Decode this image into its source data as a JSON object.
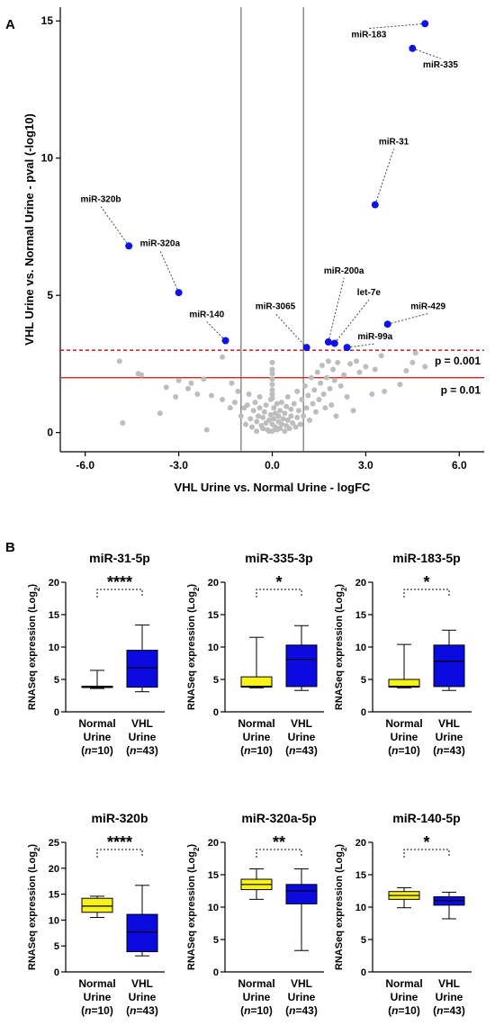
{
  "panel_labels": [
    "A",
    "B"
  ],
  "chart_data": [
    {
      "type": "scatter",
      "xlabel": "VHL Urine vs. Normal Urine - logFC",
      "ylabel": "VHL Urine vs. Normal Urine - pval (-log10)",
      "xlim": [
        -6.8,
        6.8
      ],
      "ylim": [
        -0.7,
        15.5
      ],
      "xticks": [
        "-6.0",
        "-3.0",
        "0.0",
        "3.0",
        "6.0"
      ],
      "xtick_values": [
        -6,
        -3,
        0,
        3,
        6
      ],
      "yticks": [
        "0",
        "5",
        "10",
        "15"
      ],
      "ytick_values": [
        0,
        5,
        10,
        15
      ],
      "vertical_lines": [
        -1,
        1
      ],
      "threshold_lines": [
        {
          "y": 3.0,
          "label": "p = 0.001",
          "style": "dashed",
          "color": "#b0121b"
        },
        {
          "y": 2.0,
          "label": "p = 0.01",
          "style": "solid",
          "color": "#e02020"
        }
      ],
      "highlight_color": "#1010e8",
      "background_color": "#bdbdbd",
      "highlighted": [
        {
          "name": "miR-183",
          "x": 4.9,
          "y": 14.9,
          "lx": 3.1,
          "ly": 14.4
        },
        {
          "name": "miR-335",
          "x": 4.5,
          "y": 14.0,
          "lx": 5.4,
          "ly": 13.3
        },
        {
          "name": "miR-31",
          "x": 3.3,
          "y": 8.3,
          "lx": 3.9,
          "ly": 10.5
        },
        {
          "name": "miR-320b",
          "x": -4.6,
          "y": 6.8,
          "lx": -5.5,
          "ly": 8.4
        },
        {
          "name": "miR-320a",
          "x": -3.0,
          "y": 5.1,
          "lx": -3.6,
          "ly": 6.8
        },
        {
          "name": "miR-200a",
          "x": 1.8,
          "y": 3.3,
          "lx": 2.3,
          "ly": 5.8
        },
        {
          "name": "let-7e",
          "x": 2.0,
          "y": 3.25,
          "lx": 3.1,
          "ly": 5.0
        },
        {
          "name": "miR-429",
          "x": 3.7,
          "y": 3.95,
          "lx": 5.0,
          "ly": 4.5
        },
        {
          "name": "miR-140",
          "x": -1.5,
          "y": 3.35,
          "lx": -2.1,
          "ly": 4.2
        },
        {
          "name": "miR-3065",
          "x": 1.1,
          "y": 3.1,
          "lx": 0.1,
          "ly": 4.5
        },
        {
          "name": "miR-99a",
          "x": 2.4,
          "y": 3.1,
          "lx": 3.3,
          "ly": 3.4
        }
      ],
      "background_points": [
        [
          -4.9,
          2.6
        ],
        [
          -4.8,
          0.35
        ],
        [
          -4.3,
          2.15
        ],
        [
          -4.2,
          2.1
        ],
        [
          -3.6,
          0.7
        ],
        [
          -3.4,
          1.65
        ],
        [
          -3.1,
          1.3
        ],
        [
          -3.0,
          1.9
        ],
        [
          -2.7,
          1.6
        ],
        [
          -2.6,
          1.8
        ],
        [
          -2.4,
          1.4
        ],
        [
          -2.2,
          1.95
        ],
        [
          -2.1,
          0.1
        ],
        [
          -1.95,
          1.35
        ],
        [
          -1.6,
          1.2
        ],
        [
          -1.6,
          2.75
        ],
        [
          -1.35,
          0.9
        ],
        [
          -1.3,
          1.8
        ],
        [
          -1.2,
          1.1
        ],
        [
          -1.1,
          1.5
        ],
        [
          -1.0,
          0.6
        ],
        [
          -0.9,
          0.9
        ],
        [
          -0.85,
          0.3
        ],
        [
          -0.8,
          1.0
        ],
        [
          -0.75,
          1.4
        ],
        [
          -0.7,
          0.5
        ],
        [
          -0.65,
          0.2
        ],
        [
          -0.6,
          0.8
        ],
        [
          -0.55,
          1.1
        ],
        [
          -0.5,
          0.4
        ],
        [
          -0.5,
          0.05
        ],
        [
          -0.45,
          0.6
        ],
        [
          -0.4,
          0.9
        ],
        [
          -0.4,
          1.3
        ],
        [
          -0.35,
          0.25
        ],
        [
          -0.3,
          0.55
        ],
        [
          -0.3,
          0.15
        ],
        [
          -0.25,
          0.75
        ],
        [
          -0.2,
          0.35
        ],
        [
          -0.2,
          1.0
        ],
        [
          -0.15,
          0.1
        ],
        [
          -0.1,
          0.45
        ],
        [
          -0.1,
          0.05
        ],
        [
          -0.05,
          0.65
        ],
        [
          -0.05,
          1.2
        ],
        [
          0.0,
          2.55
        ],
        [
          0.0,
          2.3
        ],
        [
          0.0,
          2.15
        ],
        [
          0.0,
          1.95
        ],
        [
          0.0,
          1.75
        ],
        [
          0.0,
          1.55
        ],
        [
          0.0,
          1.4
        ],
        [
          0.0,
          1.25
        ],
        [
          0.0,
          0.3
        ],
        [
          0.0,
          0.05
        ],
        [
          0.05,
          0.5
        ],
        [
          0.05,
          0.9
        ],
        [
          0.1,
          0.2
        ],
        [
          0.1,
          0.7
        ],
        [
          0.15,
          0.1
        ],
        [
          0.15,
          1.05
        ],
        [
          0.2,
          0.4
        ],
        [
          0.2,
          0.6
        ],
        [
          0.25,
          0.15
        ],
        [
          0.25,
          0.8
        ],
        [
          0.3,
          0.3
        ],
        [
          0.3,
          1.1
        ],
        [
          0.35,
          0.5
        ],
        [
          0.4,
          0.05
        ],
        [
          0.4,
          0.7
        ],
        [
          0.45,
          0.25
        ],
        [
          0.45,
          0.95
        ],
        [
          0.5,
          0.45
        ],
        [
          0.5,
          1.3
        ],
        [
          0.55,
          0.15
        ],
        [
          0.6,
          0.6
        ],
        [
          0.6,
          0.85
        ],
        [
          0.65,
          0.35
        ],
        [
          0.7,
          1.05
        ],
        [
          0.75,
          0.2
        ],
        [
          0.8,
          0.55
        ],
        [
          0.8,
          1.5
        ],
        [
          0.85,
          0.8
        ],
        [
          0.9,
          0.3
        ],
        [
          0.95,
          1.2
        ],
        [
          1.0,
          0.6
        ],
        [
          1.05,
          1.7
        ],
        [
          1.1,
          0.9
        ],
        [
          1.15,
          1.35
        ],
        [
          1.2,
          0.45
        ],
        [
          1.25,
          2.0
        ],
        [
          1.3,
          1.05
        ],
        [
          1.35,
          1.55
        ],
        [
          1.4,
          0.75
        ],
        [
          1.45,
          2.2
        ],
        [
          1.5,
          1.2
        ],
        [
          1.55,
          1.8
        ],
        [
          1.6,
          2.45
        ],
        [
          1.65,
          1.4
        ],
        [
          1.7,
          0.9
        ],
        [
          1.75,
          2.0
        ],
        [
          1.8,
          2.6
        ],
        [
          1.85,
          1.6
        ],
        [
          1.9,
          1.0
        ],
        [
          1.95,
          2.3
        ],
        [
          2.0,
          1.9
        ],
        [
          2.05,
          0.6
        ],
        [
          2.1,
          2.55
        ],
        [
          2.2,
          1.7
        ],
        [
          2.3,
          2.1
        ],
        [
          2.4,
          1.3
        ],
        [
          2.5,
          2.5
        ],
        [
          2.6,
          0.8
        ],
        [
          2.7,
          2.6
        ],
        [
          2.8,
          2.2
        ],
        [
          3.0,
          2.4
        ],
        [
          3.2,
          1.4
        ],
        [
          3.3,
          2.3
        ],
        [
          3.5,
          2.8
        ],
        [
          3.6,
          1.5
        ],
        [
          4.1,
          1.75
        ],
        [
          4.3,
          2.25
        ],
        [
          4.5,
          2.55
        ],
        [
          4.6,
          2.9
        ],
        [
          4.9,
          2.4
        ]
      ]
    },
    {
      "type": "box",
      "title": "miR-31-5p",
      "ylabel": "RNASeq expression (Log2)",
      "ylim": [
        0,
        20
      ],
      "yticks": [
        0,
        5,
        10,
        15,
        20
      ],
      "categories": [
        "Normal Urine (n=10)",
        "VHL Urine (n=43)"
      ],
      "cat_line1": [
        "Normal",
        "VHL"
      ],
      "cat_line2": [
        "Urine",
        "Urine"
      ],
      "cat_n": [
        "10",
        "43"
      ],
      "colors": [
        "#ffffff",
        "#0b0bdf"
      ],
      "boxes": [
        {
          "min": 3.6,
          "q1": 3.75,
          "median": 3.85,
          "q3": 3.95,
          "max": 6.4
        },
        {
          "min": 3.1,
          "q1": 3.8,
          "median": 6.8,
          "q3": 9.5,
          "max": 13.4
        }
      ],
      "significance": "****"
    },
    {
      "type": "box",
      "title": "miR-335-3p",
      "ylabel": "RNASeq expression (Log2)",
      "ylim": [
        0,
        20
      ],
      "yticks": [
        0,
        5,
        10,
        15,
        20
      ],
      "categories": [
        "Normal Urine (n=10)",
        "VHL Urine (n=43)"
      ],
      "cat_line1": [
        "Normal",
        "VHL"
      ],
      "cat_line2": [
        "Urine",
        "Urine"
      ],
      "cat_n": [
        "10",
        "43"
      ],
      "colors": [
        "#f6f21a",
        "#0b0bdf"
      ],
      "boxes": [
        {
          "min": 3.7,
          "q1": 3.8,
          "median": 3.95,
          "q3": 5.4,
          "max": 11.5
        },
        {
          "min": 3.3,
          "q1": 3.9,
          "median": 8.1,
          "q3": 10.3,
          "max": 13.3
        }
      ],
      "significance": "*"
    },
    {
      "type": "box",
      "title": "miR-183-5p",
      "ylabel": "RNASeq expression (Log2)",
      "ylim": [
        0,
        20
      ],
      "yticks": [
        0,
        5,
        10,
        15,
        20
      ],
      "categories": [
        "Normal Urine (n=10)",
        "VHL Urine (n=43)"
      ],
      "cat_line1": [
        "Normal",
        "VHL"
      ],
      "cat_line2": [
        "Urine",
        "Urine"
      ],
      "cat_n": [
        "10",
        "43"
      ],
      "colors": [
        "#f6f21a",
        "#0b0bdf"
      ],
      "boxes": [
        {
          "min": 3.7,
          "q1": 3.8,
          "median": 3.95,
          "q3": 5.0,
          "max": 10.4
        },
        {
          "min": 3.3,
          "q1": 3.9,
          "median": 7.8,
          "q3": 10.3,
          "max": 12.6
        }
      ],
      "significance": "*"
    },
    {
      "type": "box",
      "title": "miR-320b",
      "ylabel": "RNASeq expression (Log2)",
      "ylim": [
        0,
        25
      ],
      "yticks": [
        0,
        5,
        10,
        15,
        20,
        25
      ],
      "categories": [
        "Normal Urine (n=10)",
        "VHL Urine (n=43)"
      ],
      "cat_line1": [
        "Normal",
        "VHL"
      ],
      "cat_line2": [
        "Urine",
        "Urine"
      ],
      "cat_n": [
        "10",
        "43"
      ],
      "colors": [
        "#f6f21a",
        "#0b0bdf"
      ],
      "boxes": [
        {
          "min": 10.5,
          "q1": 11.5,
          "median": 12.7,
          "q3": 14.2,
          "max": 14.6
        },
        {
          "min": 3.1,
          "q1": 3.9,
          "median": 7.7,
          "q3": 11.1,
          "max": 16.7
        }
      ],
      "significance": "****"
    },
    {
      "type": "box",
      "title": "miR-320a-5p",
      "ylabel": "RNASeq expression (Log2)",
      "ylim": [
        0,
        20
      ],
      "yticks": [
        0,
        5,
        10,
        15,
        20
      ],
      "categories": [
        "Normal Urine (n=10)",
        "VHL Urine (n=43)"
      ],
      "cat_line1": [
        "Normal",
        "VHL"
      ],
      "cat_line2": [
        "Urine",
        "Urine"
      ],
      "cat_n": [
        "10",
        "43"
      ],
      "colors": [
        "#f6f21a",
        "#0b0bdf"
      ],
      "boxes": [
        {
          "min": 11.2,
          "q1": 12.7,
          "median": 13.5,
          "q3": 14.3,
          "max": 15.9
        },
        {
          "min": 3.3,
          "q1": 10.5,
          "median": 12.5,
          "q3": 13.5,
          "max": 15.9
        }
      ],
      "significance": "**"
    },
    {
      "type": "box",
      "title": "miR-140-5p",
      "ylabel": "RNASeq expression (Log2)",
      "ylim": [
        0,
        20
      ],
      "yticks": [
        0,
        5,
        10,
        15,
        20
      ],
      "categories": [
        "Normal Urine (n=10)",
        "VHL Urine (n=43)"
      ],
      "cat_line1": [
        "Normal",
        "VHL"
      ],
      "cat_line2": [
        "Urine",
        "Urine"
      ],
      "cat_n": [
        "10",
        "43"
      ],
      "colors": [
        "#f6f21a",
        "#0b0bdf"
      ],
      "boxes": [
        {
          "min": 9.9,
          "q1": 11.2,
          "median": 11.8,
          "q3": 12.4,
          "max": 13.0
        },
        {
          "min": 8.2,
          "q1": 10.3,
          "median": 11.0,
          "q3": 11.6,
          "max": 12.3
        }
      ],
      "significance": "*"
    }
  ]
}
